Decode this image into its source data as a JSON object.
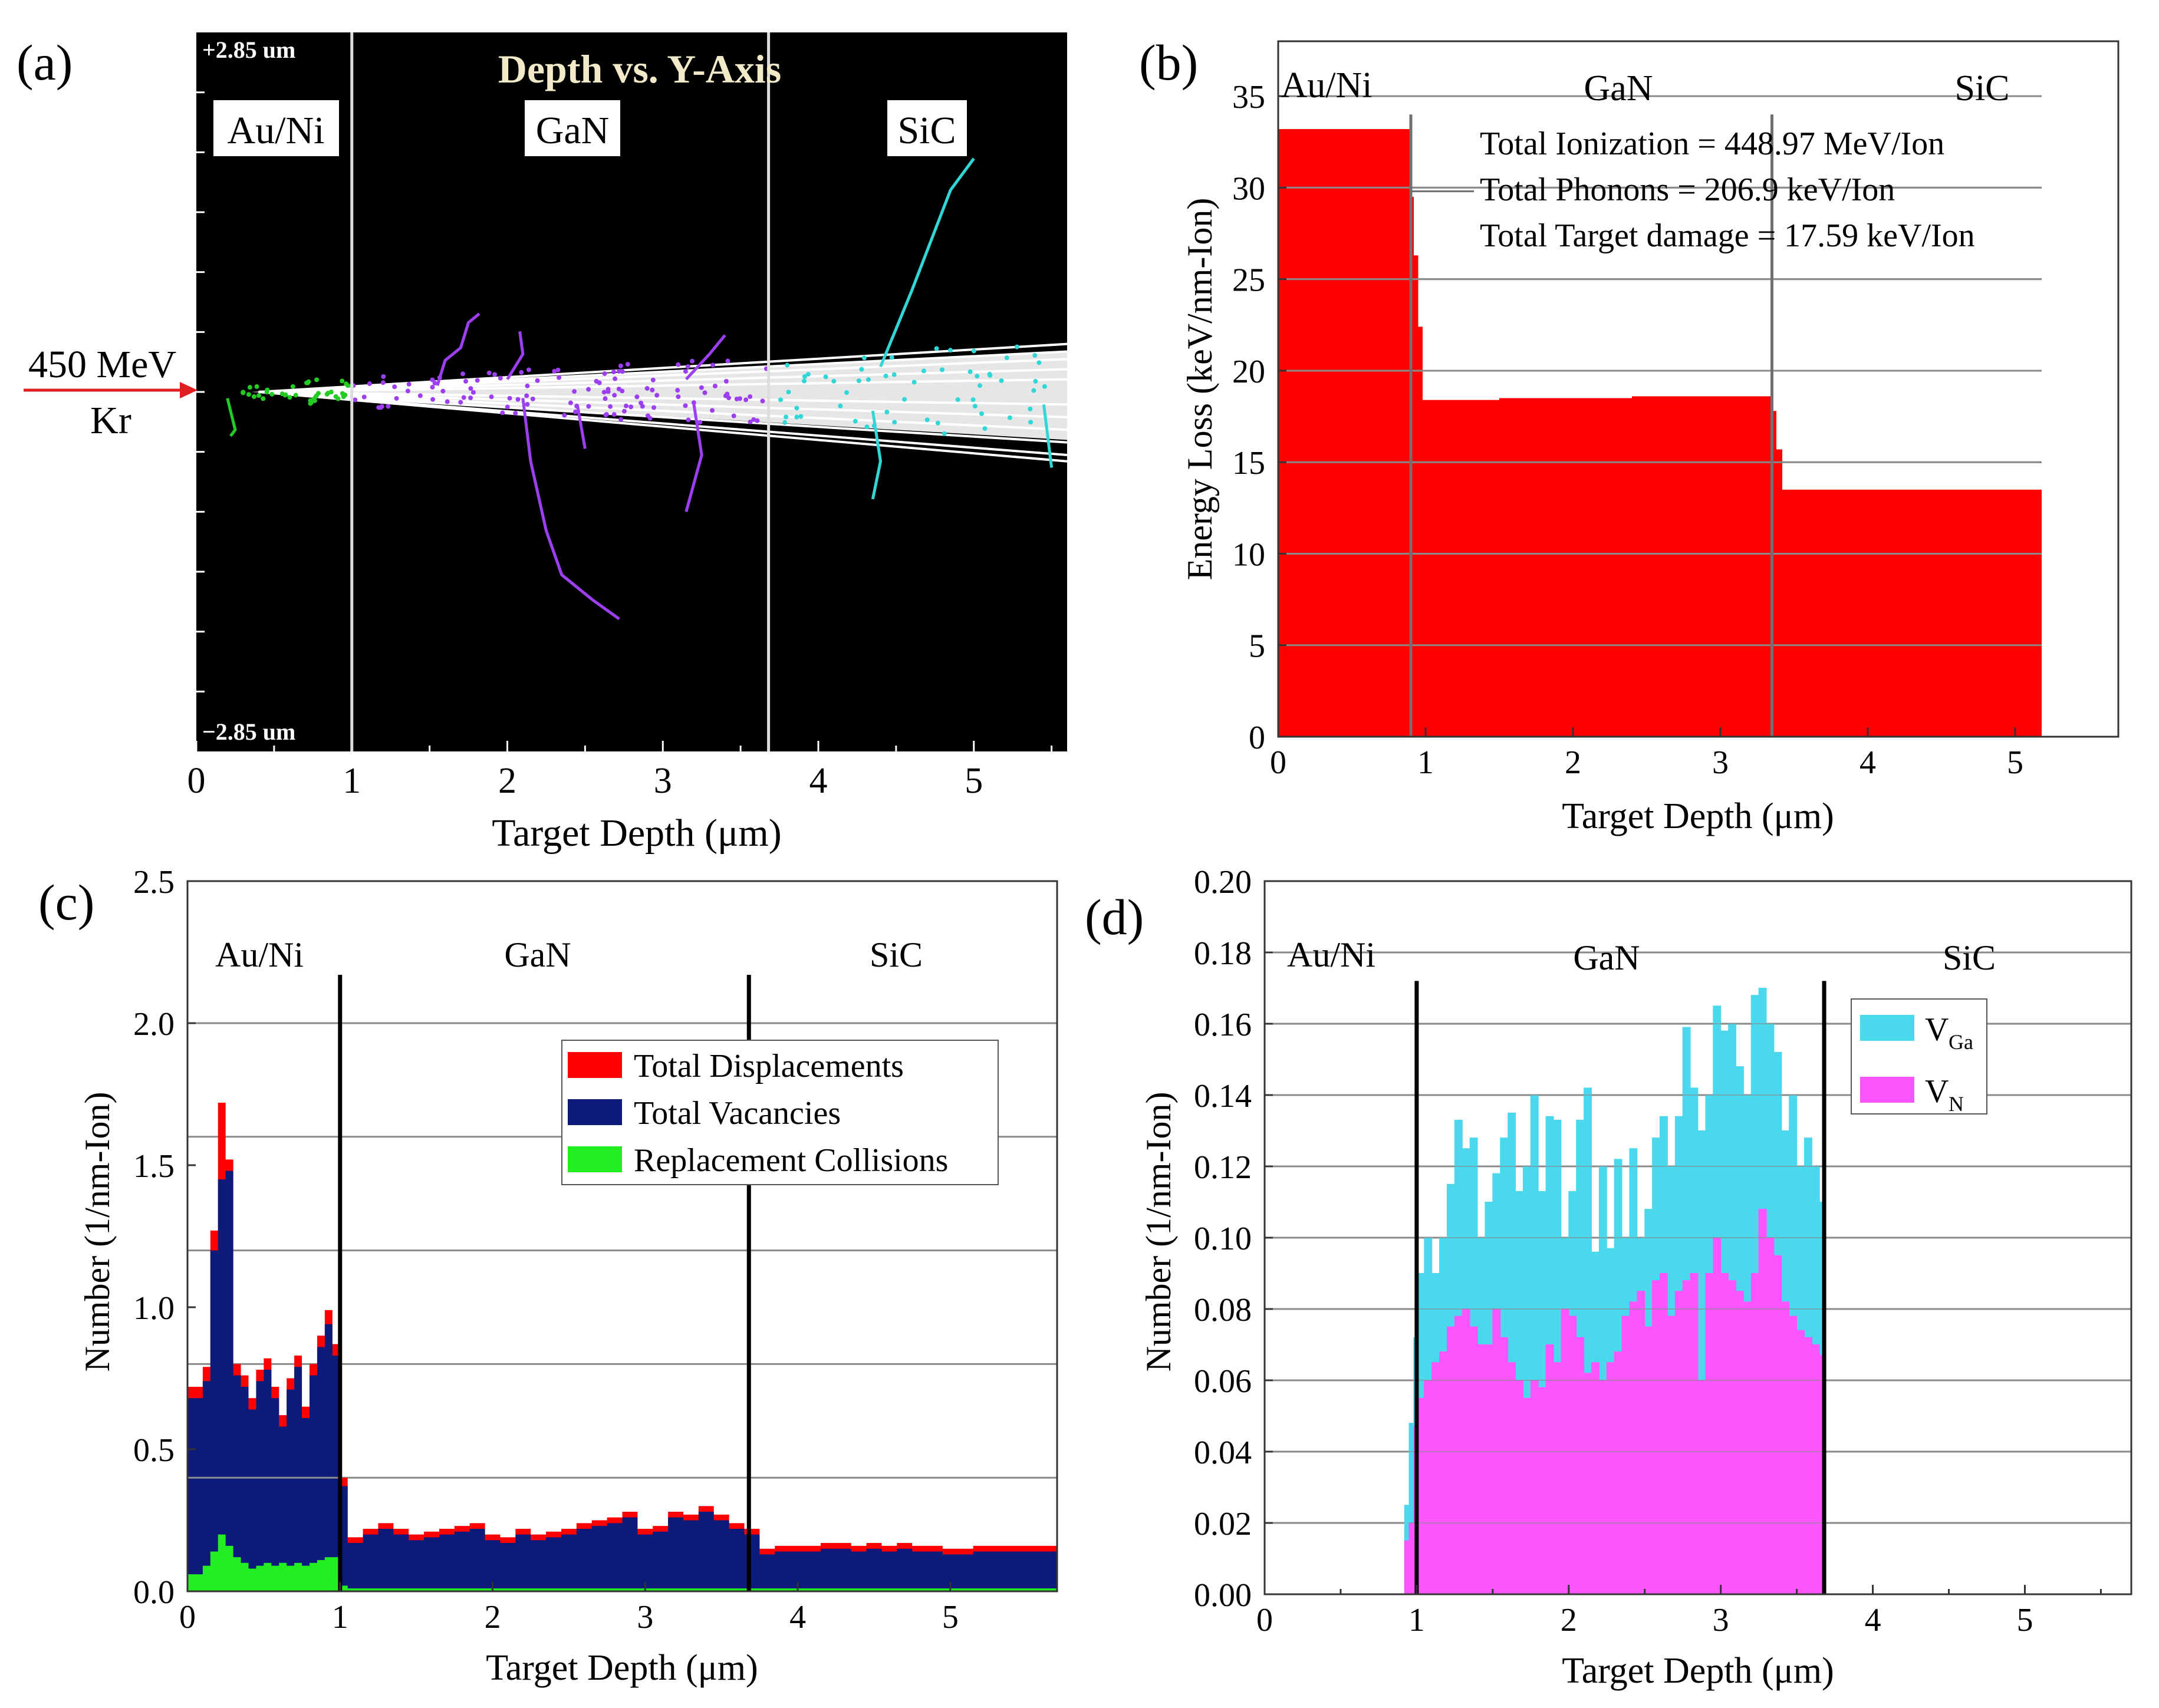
{
  "figure": {
    "panel_labels": [
      "(a)",
      "(b)",
      "(c)",
      "(d)"
    ],
    "layer_names": [
      "Au/Ni",
      "GaN",
      "SiC"
    ]
  },
  "chart_data": [
    {
      "panel": "(a)",
      "type": "scatter",
      "title": "Depth vs. Y-Axis",
      "xlabel": "Target Depth (μm)",
      "xlim": [
        0,
        5.6
      ],
      "xticks": [
        0,
        1,
        2,
        3,
        4,
        5
      ],
      "ylim_labels": {
        "top": "+2.85 um",
        "bottom": "−2.85 um"
      },
      "ylim": [
        -2.85,
        2.85
      ],
      "layer_boundaries": [
        1.0,
        3.68
      ],
      "beam_label": {
        "energy": "450 MeV",
        "ion": "Kr"
      },
      "background": "#000000",
      "track_colors": {
        "Au/Ni": "#22cc22",
        "GaN": "#9b3ff0",
        "SiC": "#33d6d6",
        "core": "#ffffff"
      },
      "recoil_tracks": [
        {
          "layer": "GaN",
          "points": [
            [
              1.55,
              0.05
            ],
            [
              1.6,
              0.25
            ],
            [
              1.7,
              0.35
            ],
            [
              1.75,
              0.55
            ],
            [
              1.82,
              0.62
            ]
          ]
        },
        {
          "layer": "GaN",
          "points": [
            [
              2.1,
              -0.05
            ],
            [
              2.15,
              -0.55
            ],
            [
              2.25,
              -1.1
            ],
            [
              2.35,
              -1.45
            ],
            [
              2.55,
              -1.65
            ],
            [
              2.72,
              -1.8
            ]
          ]
        },
        {
          "layer": "GaN",
          "points": [
            [
              2.0,
              0.1
            ],
            [
              2.1,
              0.3
            ],
            [
              2.08,
              0.48
            ]
          ]
        },
        {
          "layer": "GaN",
          "points": [
            [
              3.2,
              -0.1
            ],
            [
              3.25,
              -0.5
            ],
            [
              3.15,
              -0.95
            ]
          ]
        },
        {
          "layer": "GaN",
          "points": [
            [
              3.15,
              0.1
            ],
            [
              3.3,
              0.3
            ],
            [
              3.4,
              0.45
            ]
          ]
        },
        {
          "layer": "GaN",
          "points": [
            [
              2.45,
              -0.1
            ],
            [
              2.5,
              -0.45
            ]
          ]
        },
        {
          "layer": "SiC",
          "points": [
            [
              4.4,
              0.2
            ],
            [
              4.6,
              0.8
            ],
            [
              4.85,
              1.6
            ],
            [
              5.0,
              1.85
            ]
          ]
        },
        {
          "layer": "SiC",
          "points": [
            [
              4.35,
              -0.15
            ],
            [
              4.4,
              -0.55
            ],
            [
              4.35,
              -0.85
            ]
          ]
        },
        {
          "layer": "SiC",
          "points": [
            [
              5.45,
              -0.1
            ],
            [
              5.5,
              -0.6
            ]
          ]
        },
        {
          "layer": "Au/Ni",
          "points": [
            [
              0.2,
              -0.05
            ],
            [
              0.25,
              -0.3
            ],
            [
              0.22,
              -0.35
            ]
          ]
        }
      ]
    },
    {
      "panel": "(b)",
      "type": "area",
      "xlabel": "Target Depth (μm)",
      "ylabel": "Energy Loss (keV/nm-Ion)",
      "xlim": [
        0,
        5.7
      ],
      "ylim": [
        0,
        38
      ],
      "xticks": [
        0,
        1,
        2,
        3,
        4,
        5
      ],
      "yticks": [
        0,
        5,
        10,
        15,
        20,
        25,
        30,
        35
      ],
      "layer_boundaries": [
        0.9,
        3.35
      ],
      "fill_color": "#ff0000",
      "steps": [
        {
          "x0": 0.0,
          "x1": 0.9,
          "y": 33.2
        },
        {
          "x0": 0.9,
          "x1": 0.92,
          "y": 29.5
        },
        {
          "x0": 0.92,
          "x1": 0.95,
          "y": 26.3
        },
        {
          "x0": 0.95,
          "x1": 0.98,
          "y": 22.4
        },
        {
          "x0": 0.98,
          "x1": 1.5,
          "y": 18.4
        },
        {
          "x0": 1.5,
          "x1": 2.4,
          "y": 18.5
        },
        {
          "x0": 2.4,
          "x1": 3.35,
          "y": 18.6
        },
        {
          "x0": 3.35,
          "x1": 3.38,
          "y": 17.8
        },
        {
          "x0": 3.38,
          "x1": 3.42,
          "y": 15.7
        },
        {
          "x0": 3.42,
          "x1": 5.18,
          "y": 13.5
        }
      ],
      "annotations": [
        "Total Ionization = 448.97 MeV/Ion",
        "Total Phonons = 206.9 keV/Ion",
        "Total Target damage = 17.59 keV/Ion"
      ]
    },
    {
      "panel": "(c)",
      "type": "area",
      "xlabel": "Target Depth (μm)",
      "ylabel": "Number (1/nm-Ion)",
      "xlim": [
        0,
        5.7
      ],
      "ylim": [
        0,
        2.5
      ],
      "xticks": [
        0,
        1,
        2,
        3,
        4,
        5
      ],
      "yticks": [
        0.0,
        0.5,
        1.0,
        1.5,
        2.0,
        2.5
      ],
      "layer_boundaries": [
        1.0,
        3.68
      ],
      "legend_position": "top-right",
      "x": [
        0.0,
        0.1,
        0.15,
        0.2,
        0.25,
        0.3,
        0.35,
        0.4,
        0.45,
        0.5,
        0.55,
        0.6,
        0.65,
        0.7,
        0.75,
        0.8,
        0.85,
        0.9,
        0.95,
        1.0,
        1.05,
        1.15,
        1.25,
        1.35,
        1.45,
        1.55,
        1.65,
        1.75,
        1.85,
        1.95,
        2.05,
        2.15,
        2.25,
        2.35,
        2.45,
        2.55,
        2.65,
        2.75,
        2.85,
        2.95,
        3.05,
        3.15,
        3.25,
        3.35,
        3.45,
        3.55,
        3.65,
        3.75,
        3.85,
        3.95,
        4.05,
        4.15,
        4.25,
        4.35,
        4.45,
        4.55,
        4.65,
        4.75,
        4.85,
        4.95,
        5.05,
        5.15,
        5.25,
        5.35,
        5.45,
        5.55,
        5.7
      ],
      "series": [
        {
          "name": "Total Displacements",
          "color": "#ff0000",
          "values": [
            0.72,
            0.79,
            1.27,
            1.72,
            1.52,
            0.8,
            0.76,
            0.68,
            0.78,
            0.82,
            0.72,
            0.62,
            0.75,
            0.83,
            0.65,
            0.8,
            0.9,
            0.99,
            0.87,
            0.4,
            0.19,
            0.22,
            0.24,
            0.22,
            0.2,
            0.21,
            0.22,
            0.23,
            0.24,
            0.2,
            0.19,
            0.22,
            0.2,
            0.21,
            0.22,
            0.24,
            0.25,
            0.26,
            0.28,
            0.22,
            0.23,
            0.28,
            0.27,
            0.3,
            0.27,
            0.24,
            0.22,
            0.15,
            0.16,
            0.16,
            0.16,
            0.17,
            0.17,
            0.16,
            0.17,
            0.16,
            0.17,
            0.16,
            0.16,
            0.15,
            0.15,
            0.16,
            0.16,
            0.16,
            0.16,
            0.16,
            0.16
          ]
        },
        {
          "name": "Total Vacancies",
          "color": "#0c1a7a",
          "values": [
            0.68,
            0.74,
            1.2,
            1.45,
            1.48,
            0.76,
            0.72,
            0.64,
            0.74,
            0.78,
            0.68,
            0.58,
            0.71,
            0.79,
            0.61,
            0.76,
            0.86,
            0.94,
            0.83,
            0.37,
            0.17,
            0.2,
            0.22,
            0.2,
            0.18,
            0.19,
            0.2,
            0.21,
            0.22,
            0.18,
            0.17,
            0.2,
            0.18,
            0.19,
            0.2,
            0.22,
            0.23,
            0.24,
            0.26,
            0.2,
            0.21,
            0.26,
            0.25,
            0.28,
            0.25,
            0.22,
            0.2,
            0.13,
            0.14,
            0.14,
            0.14,
            0.15,
            0.15,
            0.14,
            0.15,
            0.14,
            0.15,
            0.14,
            0.14,
            0.13,
            0.13,
            0.14,
            0.14,
            0.14,
            0.14,
            0.14,
            0.14
          ]
        },
        {
          "name": "Replacement Collisions",
          "color": "#22ee22",
          "values": [
            0.06,
            0.09,
            0.14,
            0.2,
            0.16,
            0.12,
            0.1,
            0.08,
            0.09,
            0.1,
            0.09,
            0.1,
            0.09,
            0.1,
            0.09,
            0.1,
            0.11,
            0.12,
            0.12,
            0.02,
            0.01,
            0.01,
            0.01,
            0.01,
            0.01,
            0.01,
            0.01,
            0.01,
            0.01,
            0.01,
            0.01,
            0.01,
            0.01,
            0.01,
            0.01,
            0.01,
            0.01,
            0.01,
            0.01,
            0.01,
            0.01,
            0.01,
            0.01,
            0.01,
            0.01,
            0.01,
            0.01,
            0.01,
            0.01,
            0.01,
            0.01,
            0.01,
            0.01,
            0.01,
            0.01,
            0.01,
            0.01,
            0.01,
            0.01,
            0.01,
            0.01,
            0.01,
            0.01,
            0.01,
            0.01,
            0.01,
            0.01
          ]
        }
      ]
    },
    {
      "panel": "(d)",
      "type": "area",
      "xlabel": "Target Depth (μm)",
      "ylabel": "Number (1/nm-Ion)",
      "xlim": [
        0,
        5.7
      ],
      "ylim": [
        0,
        0.2
      ],
      "xticks": [
        0,
        1,
        2,
        3,
        4,
        5
      ],
      "yticks": [
        "0.00",
        "0.02",
        "0.04",
        "0.06",
        "0.08",
        "0.10",
        "0.12",
        "0.14",
        "0.16",
        "0.18",
        "0.20"
      ],
      "layer_boundaries": [
        1.0,
        3.68
      ],
      "legend_position": "top-right",
      "x": [
        0.92,
        0.95,
        0.98,
        1.0,
        1.05,
        1.1,
        1.15,
        1.2,
        1.25,
        1.3,
        1.35,
        1.4,
        1.45,
        1.5,
        1.55,
        1.6,
        1.65,
        1.7,
        1.75,
        1.8,
        1.85,
        1.9,
        1.95,
        2.0,
        2.05,
        2.1,
        2.15,
        2.2,
        2.25,
        2.3,
        2.35,
        2.4,
        2.45,
        2.5,
        2.55,
        2.6,
        2.65,
        2.7,
        2.75,
        2.8,
        2.85,
        2.9,
        2.95,
        3.0,
        3.05,
        3.1,
        3.15,
        3.2,
        3.25,
        3.3,
        3.35,
        3.4,
        3.45,
        3.5,
        3.55,
        3.6,
        3.65,
        3.68
      ],
      "series": [
        {
          "name": "V_Ga",
          "label_main": "V",
          "label_sub": "Ga",
          "color": "#4ad8ec",
          "values": [
            0.025,
            0.048,
            0.072,
            0.09,
            0.1,
            0.09,
            0.1,
            0.115,
            0.133,
            0.125,
            0.128,
            0.1,
            0.11,
            0.118,
            0.128,
            0.135,
            0.113,
            0.12,
            0.14,
            0.113,
            0.134,
            0.133,
            0.1,
            0.113,
            0.133,
            0.142,
            0.096,
            0.12,
            0.097,
            0.122,
            0.1,
            0.125,
            0.1,
            0.108,
            0.128,
            0.134,
            0.12,
            0.134,
            0.159,
            0.142,
            0.13,
            0.14,
            0.165,
            0.158,
            0.16,
            0.148,
            0.14,
            0.168,
            0.17,
            0.16,
            0.152,
            0.13,
            0.14,
            0.12,
            0.128,
            0.12,
            0.11,
            0.0
          ]
        },
        {
          "name": "V_N",
          "label_main": "V",
          "label_sub": "N",
          "color": "#ff55ff",
          "values": [
            0.015,
            0.02,
            0.047,
            0.055,
            0.06,
            0.065,
            0.068,
            0.075,
            0.078,
            0.08,
            0.075,
            0.07,
            0.07,
            0.08,
            0.072,
            0.065,
            0.06,
            0.055,
            0.06,
            0.058,
            0.07,
            0.065,
            0.08,
            0.078,
            0.072,
            0.062,
            0.065,
            0.06,
            0.065,
            0.068,
            0.078,
            0.082,
            0.085,
            0.075,
            0.088,
            0.09,
            0.078,
            0.085,
            0.088,
            0.09,
            0.06,
            0.09,
            0.1,
            0.09,
            0.088,
            0.085,
            0.082,
            0.09,
            0.108,
            0.1,
            0.095,
            0.082,
            0.078,
            0.074,
            0.072,
            0.07,
            0.067,
            0.0
          ]
        }
      ]
    }
  ]
}
